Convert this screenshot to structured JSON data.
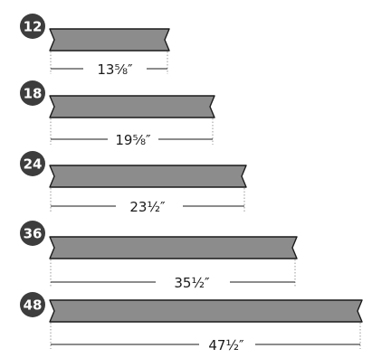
{
  "colors": {
    "bar_fill": "#8c8c8c",
    "bar_stroke": "#1a1a1a",
    "badge_fill": "#3d3d3d",
    "badge_text": "#ffffff",
    "dimension_line": "#1a1a1a",
    "extension_line": "#9a9a9a"
  },
  "items": [
    {
      "id": "12",
      "badge": "12",
      "length_label": "13⅝″",
      "length_in": 13.625
    },
    {
      "id": "18",
      "badge": "18",
      "length_label": "19⅝″",
      "length_in": 19.625
    },
    {
      "id": "24",
      "badge": "24",
      "length_label": "23½″",
      "length_in": 23.5
    },
    {
      "id": "36",
      "badge": "36",
      "length_label": "35½″",
      "length_in": 35.5
    },
    {
      "id": "48",
      "badge": "48",
      "length_label": "47½″",
      "length_in": 47.5
    }
  ]
}
